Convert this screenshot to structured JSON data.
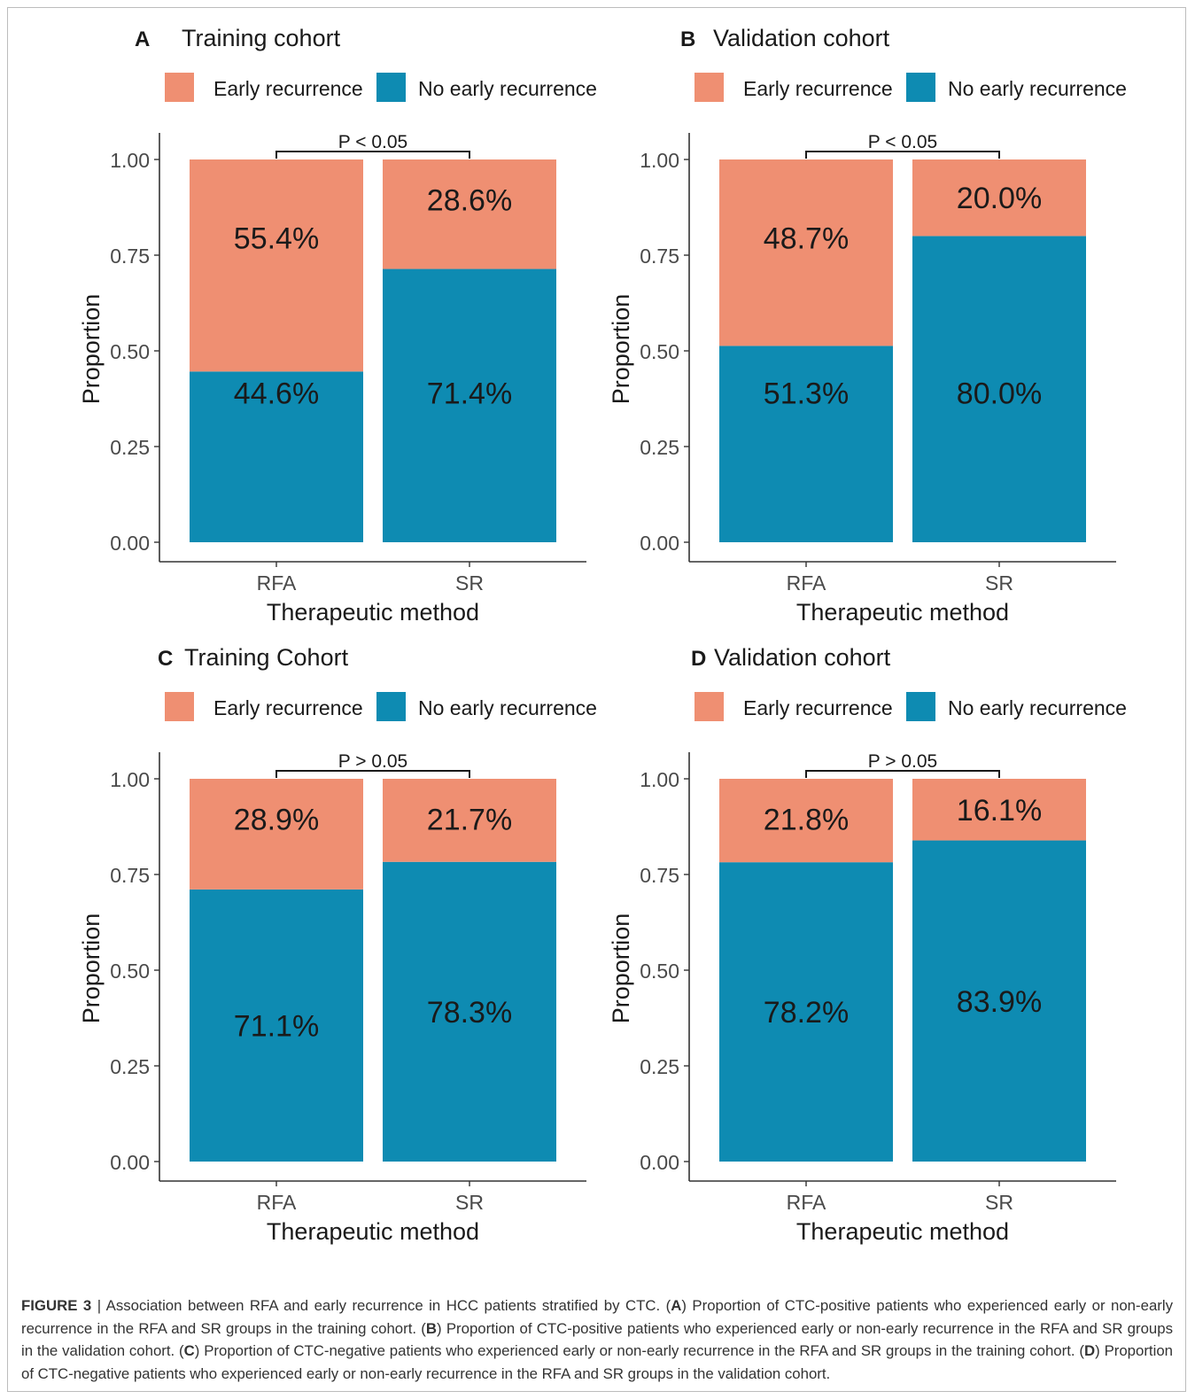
{
  "chart_data": [
    {
      "type": "bar",
      "stacked": true,
      "panel_letter": "A",
      "title": "Training cohort",
      "xlabel": "Therapeutic method",
      "ylabel": "Proportion",
      "categories": [
        "RFA",
        "SR"
      ],
      "ylim": [
        0,
        1
      ],
      "yticks": [
        "0.00",
        "0.25",
        "0.50",
        "0.75",
        "1.00"
      ],
      "series": [
        {
          "name": "No early recurrence",
          "values": [
            0.446,
            0.714
          ],
          "labels": [
            "44.6%",
            "71.4%"
          ],
          "color": "#0e8bb2"
        },
        {
          "name": "Early recurrence",
          "values": [
            0.554,
            0.286
          ],
          "labels": [
            "55.4%",
            "28.6%"
          ],
          "color": "#ef8f72"
        }
      ],
      "annotation": "P < 0.05",
      "legend_position": "top",
      "grid": false
    },
    {
      "type": "bar",
      "stacked": true,
      "panel_letter": "B",
      "title": "Validation cohort",
      "xlabel": "Therapeutic method",
      "ylabel": "Proportion",
      "categories": [
        "RFA",
        "SR"
      ],
      "ylim": [
        0,
        1
      ],
      "yticks": [
        "0.00",
        "0.25",
        "0.50",
        "0.75",
        "1.00"
      ],
      "series": [
        {
          "name": "No early recurrence",
          "values": [
            0.513,
            0.8
          ],
          "labels": [
            "51.3%",
            "80.0%"
          ],
          "color": "#0e8bb2"
        },
        {
          "name": "Early recurrence",
          "values": [
            0.487,
            0.2
          ],
          "labels": [
            "48.7%",
            "20.0%"
          ],
          "color": "#ef8f72"
        }
      ],
      "annotation": "P < 0.05",
      "legend_position": "top",
      "grid": false
    },
    {
      "type": "bar",
      "stacked": true,
      "panel_letter": "C",
      "title": "Training Cohort",
      "xlabel": "Therapeutic method",
      "ylabel": "Proportion",
      "categories": [
        "RFA",
        "SR"
      ],
      "ylim": [
        0,
        1
      ],
      "yticks": [
        "0.00",
        "0.25",
        "0.50",
        "0.75",
        "1.00"
      ],
      "series": [
        {
          "name": "No early recurrence",
          "values": [
            0.711,
            0.783
          ],
          "labels": [
            "71.1%",
            "78.3%"
          ],
          "color": "#0e8bb2"
        },
        {
          "name": "Early recurrence",
          "values": [
            0.289,
            0.217
          ],
          "labels": [
            "28.9%",
            "21.7%"
          ],
          "color": "#ef8f72"
        }
      ],
      "annotation": "P > 0.05",
      "legend_position": "top",
      "grid": false
    },
    {
      "type": "bar",
      "stacked": true,
      "panel_letter": "D",
      "title": "Validation cohort",
      "xlabel": "Therapeutic method",
      "ylabel": "Proportion",
      "categories": [
        "RFA",
        "SR"
      ],
      "ylim": [
        0,
        1
      ],
      "yticks": [
        "0.00",
        "0.25",
        "0.50",
        "0.75",
        "1.00"
      ],
      "series": [
        {
          "name": "No early recurrence",
          "values": [
            0.782,
            0.839
          ],
          "labels": [
            "78.2%",
            "83.9%"
          ],
          "color": "#0e8bb2"
        },
        {
          "name": "Early recurrence",
          "values": [
            0.218,
            0.161
          ],
          "labels": [
            "21.8%",
            "16.1%"
          ],
          "color": "#ef8f72"
        }
      ],
      "annotation": "P > 0.05",
      "legend_position": "top",
      "grid": false
    }
  ],
  "caption": {
    "label": "FIGURE 3",
    "separator": " | ",
    "segments": [
      {
        "text": "Association between RFA and early recurrence in HCC patients stratified by CTC. (",
        "bold": false
      },
      {
        "text": "A",
        "bold": true
      },
      {
        "text": ") Proportion of CTC-positive patients who experienced early or non-early recurrence in the RFA and SR groups in the training cohort. (",
        "bold": false
      },
      {
        "text": "B",
        "bold": true
      },
      {
        "text": ") Proportion of CTC-positive patients who experienced early or non-early recurrence in the RFA and SR groups in the validation cohort. (",
        "bold": false
      },
      {
        "text": "C",
        "bold": true
      },
      {
        "text": ") Proportion of CTC-negative patients who experienced early or non-early recurrence in the RFA and SR groups in the training cohort. (",
        "bold": false
      },
      {
        "text": "D",
        "bold": true
      },
      {
        "text": ") Proportion of CTC-negative patients who experienced early or non-early recurrence in the RFA and SR groups in the validation cohort.",
        "bold": false
      }
    ]
  }
}
